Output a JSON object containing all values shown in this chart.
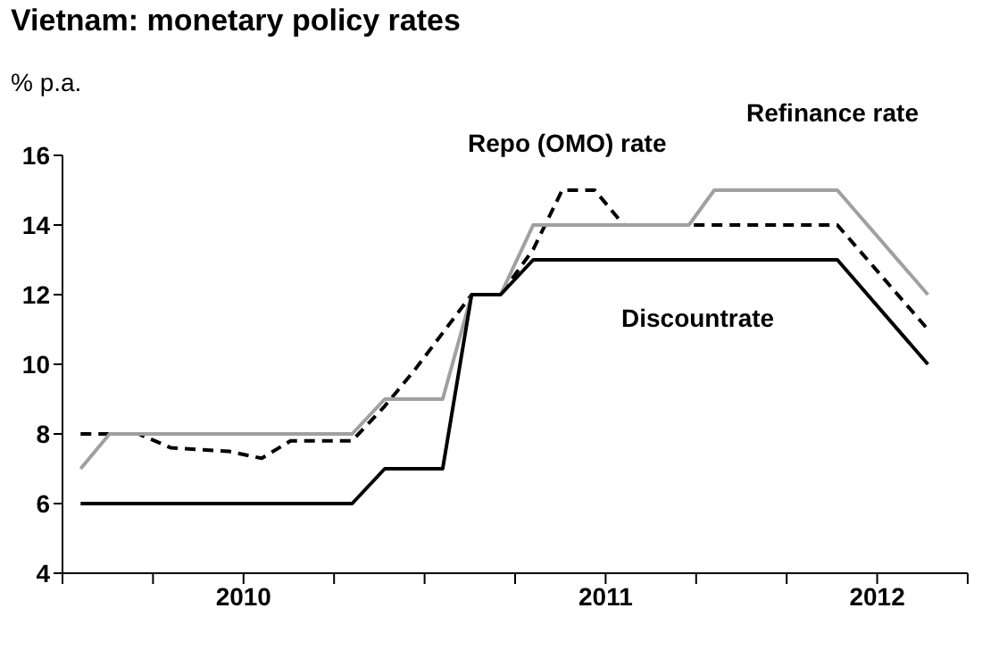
{
  "chart_data": {
    "type": "line",
    "title": "Vietnam: monetary policy rates",
    "ylabel": "% p.a.",
    "xlim": [
      2010,
      2012.5
    ],
    "xticks": [
      {
        "value": 2010,
        "label": null
      },
      {
        "value": 2010.25,
        "label": null
      },
      {
        "value": 2010.5,
        "label": "2010"
      },
      {
        "value": 2010.75,
        "label": null
      },
      {
        "value": 2011,
        "label": null
      },
      {
        "value": 2011.25,
        "label": null
      },
      {
        "value": 2011.5,
        "label": "2011"
      },
      {
        "value": 2011.75,
        "label": null
      },
      {
        "value": 2012,
        "label": null
      },
      {
        "value": 2012.25,
        "label": "2012"
      },
      {
        "value": 2012.5,
        "label": null
      }
    ],
    "ylim": [
      4,
      16
    ],
    "yticks": [
      4,
      6,
      8,
      10,
      12,
      14,
      16
    ],
    "grid": false,
    "legend": false,
    "marker": "none",
    "series": [
      {
        "name": "Repo (OMO) rate",
        "color": "#000000",
        "line_style": "dashed",
        "x": [
          2010.05,
          2010.13,
          2010.21,
          2010.3,
          2010.46,
          2010.55,
          2010.63,
          2010.8,
          2010.89,
          2010.97,
          2011.13,
          2011.21,
          2011.3,
          2011.38,
          2011.47,
          2011.55,
          2011.73,
          2012.14,
          2012.39
        ],
        "values": [
          8,
          8,
          8,
          7.6,
          7.5,
          7.3,
          7.8,
          7.8,
          8.8,
          9.8,
          12,
          12,
          13.3,
          15,
          15,
          14,
          14,
          14,
          11
        ]
      },
      {
        "name": "Refinance rate",
        "color": "#a0a0a0",
        "line_style": "solid",
        "x": [
          2010.05,
          2010.13,
          2010.8,
          2010.89,
          2011.05,
          2011.13,
          2011.21,
          2011.3,
          2011.73,
          2011.8,
          2012.14,
          2012.39
        ],
        "values": [
          7,
          8,
          8,
          9,
          9,
          12,
          12,
          14,
          14,
          15,
          15,
          12
        ]
      },
      {
        "name": "Discountrate",
        "color": "#000000",
        "line_style": "solid",
        "x": [
          2010.05,
          2010.8,
          2010.89,
          2011.05,
          2011.13,
          2011.21,
          2011.3,
          2012.14,
          2012.39
        ],
        "values": [
          6,
          6,
          7,
          7,
          12,
          12,
          13,
          13,
          10
        ]
      }
    ]
  }
}
